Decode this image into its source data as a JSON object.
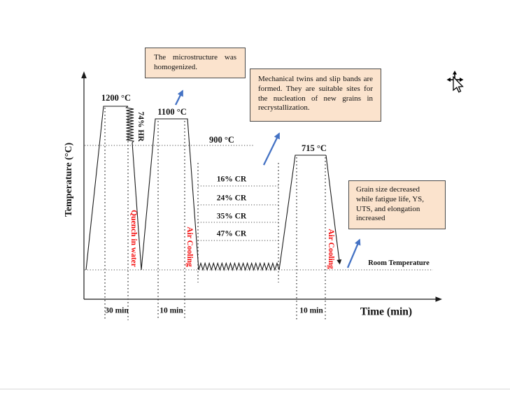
{
  "colors": {
    "accent_blue": "#4472C4",
    "label_red": "#F50C0C",
    "callout_fill": "#FBE3CD",
    "callout_border": "#4A4A4A",
    "line_black": "#1A1A1A"
  },
  "axes": {
    "y_label": "Temperature (°C)",
    "x_label": "Time (min)"
  },
  "temperatures": {
    "peak1": "1200 °C",
    "peak2": "1100 °C",
    "peak3": "715 °C",
    "ref900": "900 °C",
    "room": "Room Temperature"
  },
  "process_labels": {
    "hot_roll": "74% HR",
    "quench": "Quench in water",
    "air_cool_1": "Air Cooling",
    "air_cool_2": "Air Cooling"
  },
  "cold_roll_steps": [
    "16% CR",
    "24% CR",
    "35% CR",
    "47% CR"
  ],
  "durations": {
    "homogenization": "30 min",
    "anneal_1": "10 min",
    "anneal_2": "10 min"
  },
  "callouts": {
    "homogenized": "The microstructure was homogenized.",
    "twins": "Mechanical twins and slip bands are formed. They are suitable sites for the nucleation of new grains in recrystallization.",
    "grain": "Grain size decreased while fatigue life, YS, UTS, and elongation increased"
  }
}
